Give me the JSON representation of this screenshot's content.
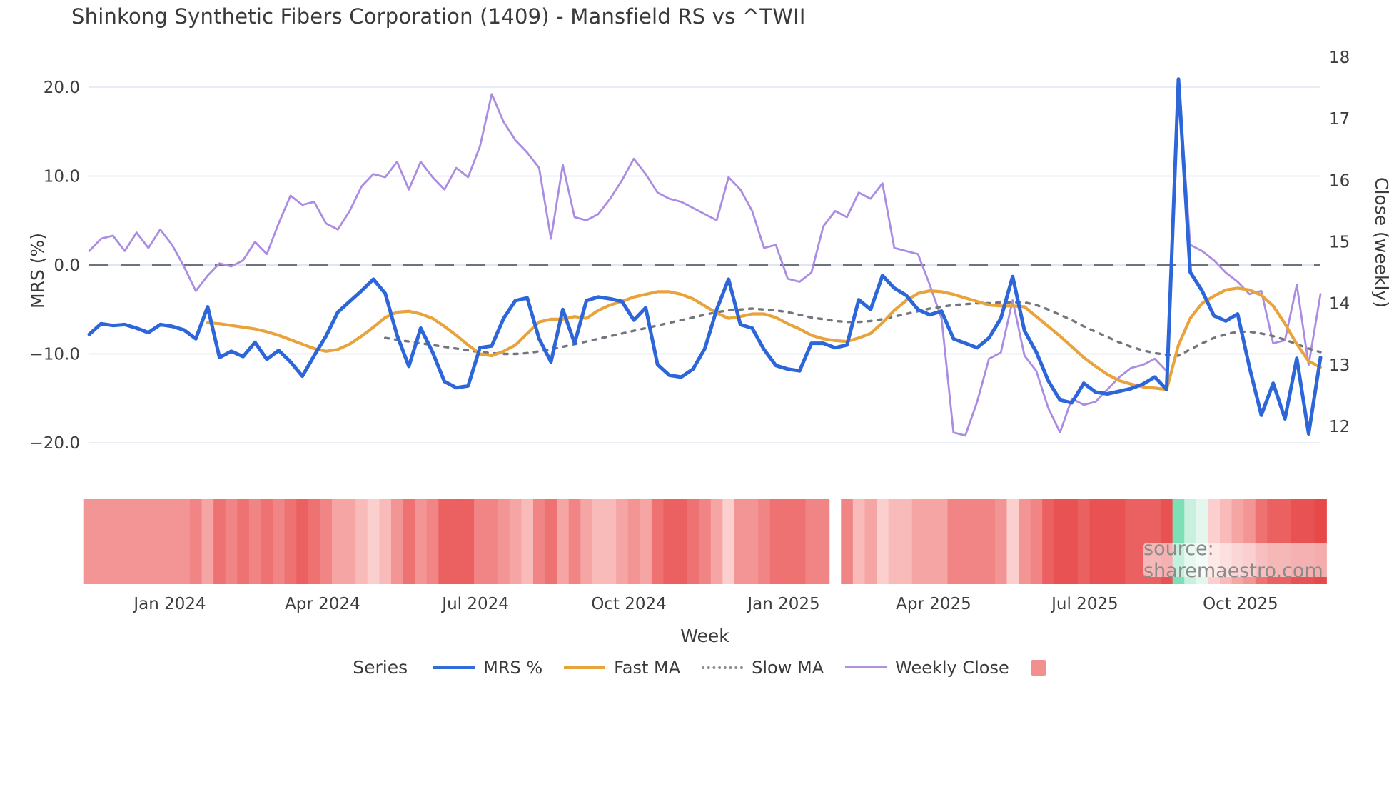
{
  "title": "Shinkong Synthetic Fibers Corporation (1409) - Mansfield RS vs ^TWII",
  "watermark": {
    "text": "source: sharemaestro.com"
  },
  "axes": {
    "left": {
      "label": "MRS (%)",
      "ticks": [
        {
          "value": 20,
          "label": "20.0"
        },
        {
          "value": 10,
          "label": "10.0"
        },
        {
          "value": 0,
          "label": "0.0"
        },
        {
          "value": -10,
          "label": "−10.0"
        },
        {
          "value": -20,
          "label": "−20.0"
        }
      ]
    },
    "right": {
      "label": "Close (weekly)",
      "ticks": [
        {
          "value": 18,
          "label": "18"
        },
        {
          "value": 17,
          "label": "17"
        },
        {
          "value": 16,
          "label": "16"
        },
        {
          "value": 15,
          "label": "15"
        },
        {
          "value": 14,
          "label": "14"
        },
        {
          "value": 13,
          "label": "13"
        },
        {
          "value": 12,
          "label": "12"
        }
      ]
    },
    "x": {
      "label": "Week",
      "ticks": [
        {
          "week": 6.81,
          "label": "Jan 2024"
        },
        {
          "week": 19.71,
          "label": "Apr 2024"
        },
        {
          "week": 32.62,
          "label": "Jul 2024"
        },
        {
          "week": 45.58,
          "label": "Oct 2024"
        },
        {
          "week": 58.66,
          "label": "Jan 2025"
        },
        {
          "week": 71.32,
          "label": "Apr 2025"
        },
        {
          "week": 84.1,
          "label": "Jul 2025"
        },
        {
          "week": 97.24,
          "label": "Oct 2025"
        }
      ]
    }
  },
  "legend": {
    "title": "Series",
    "items": [
      {
        "label": "MRS %",
        "color": "#2f6bd9",
        "style": "solid",
        "thickness": 5
      },
      {
        "label": "Fast MA",
        "color": "#e7a33c",
        "style": "solid",
        "thickness": 4
      },
      {
        "label": "Slow MA",
        "color": "#8b8e97",
        "style": "dotted",
        "thickness": 4
      },
      {
        "label": "Weekly Close",
        "color": "#b190e0",
        "style": "solid",
        "thickness": 3
      },
      {
        "label": "",
        "color": "#f29090",
        "style": "square",
        "thickness": 0
      }
    ]
  },
  "chart_data": {
    "type": "line",
    "title": "Shinkong Synthetic Fibers Corporation (1409) - Mansfield RS vs ^TWII",
    "xlabel": "Week",
    "ylabel_left": "MRS (%)",
    "ylabel_right": "Close (weekly)",
    "x_unit": "week_index",
    "weeks": 105,
    "date_range": "Nov 2023 - Nov 2025",
    "left_ylim": [
      -20,
      20
    ],
    "right_ylim": [
      12,
      18
    ],
    "grid": "horizontal-left-ticks",
    "zero_line": "dashed",
    "legend_position": "bottom",
    "series": [
      {
        "name": "Weekly Close",
        "axis": "right",
        "color": "#ab8ce3",
        "width": 2.8,
        "dash": null,
        "start": 0,
        "values": [
          14.85,
          15.05,
          15.1,
          14.85,
          15.15,
          14.9,
          15.2,
          14.95,
          14.6,
          14.2,
          14.45,
          14.65,
          14.6,
          14.7,
          15.0,
          14.8,
          15.3,
          15.75,
          15.6,
          15.65,
          15.3,
          15.2,
          15.5,
          15.9,
          16.1,
          16.05,
          16.3,
          15.85,
          16.3,
          16.05,
          15.85,
          16.2,
          16.05,
          16.55,
          17.4,
          16.95,
          16.65,
          16.45,
          16.2,
          15.05,
          16.25,
          15.4,
          15.35,
          15.45,
          15.7,
          16.0,
          16.35,
          16.1,
          15.8,
          15.7,
          15.65,
          15.55,
          15.45,
          15.35,
          16.05,
          15.85,
          15.5,
          14.9,
          14.95,
          14.4,
          14.35,
          14.5,
          15.25,
          15.5,
          15.4,
          15.8,
          15.7,
          15.95,
          14.9,
          14.85,
          14.8,
          14.3,
          13.75,
          11.9,
          11.85,
          12.4,
          13.1,
          13.2,
          14.05,
          13.15,
          12.9,
          12.3,
          11.9,
          12.45,
          12.35,
          12.4,
          12.6,
          12.8,
          12.95,
          13.0,
          13.1,
          12.9,
          17.65,
          14.95,
          14.85,
          14.7,
          14.5,
          14.35,
          14.15,
          14.2,
          13.35,
          13.4,
          14.3,
          13.0,
          14.15
        ]
      },
      {
        "name": "Slow MA",
        "axis": "left",
        "color": "#73767e",
        "width": 3.4,
        "dash": "5 9",
        "start": 25,
        "values": [
          -8.2,
          -8.4,
          -8.6,
          -8.8,
          -9.0,
          -9.2,
          -9.4,
          -9.6,
          -9.8,
          -9.9,
          -10.0,
          -10.0,
          -9.9,
          -9.7,
          -9.5,
          -9.2,
          -8.9,
          -8.6,
          -8.3,
          -8.0,
          -7.7,
          -7.4,
          -7.1,
          -6.8,
          -6.5,
          -6.2,
          -5.9,
          -5.6,
          -5.3,
          -5.1,
          -5.0,
          -4.9,
          -5.0,
          -5.1,
          -5.3,
          -5.6,
          -5.9,
          -6.1,
          -6.3,
          -6.4,
          -6.4,
          -6.3,
          -6.1,
          -5.8,
          -5.5,
          -5.2,
          -4.9,
          -4.7,
          -4.5,
          -4.4,
          -4.3,
          -4.3,
          -4.2,
          -4.2,
          -4.2,
          -4.5,
          -5.0,
          -5.6,
          -6.2,
          -6.9,
          -7.5,
          -8.1,
          -8.7,
          -9.2,
          -9.6,
          -9.9,
          -10.1,
          -10.2,
          -9.5,
          -8.8,
          -8.2,
          -7.8,
          -7.5,
          -7.5,
          -7.7,
          -8.0,
          -8.4,
          -8.9,
          -9.4,
          -9.8
        ]
      },
      {
        "name": "Fast MA",
        "axis": "left",
        "color": "#e8a33c",
        "width": 4.2,
        "dash": null,
        "start": 10,
        "values": [
          -6.5,
          -6.6,
          -6.8,
          -7.0,
          -7.2,
          -7.5,
          -7.9,
          -8.4,
          -8.9,
          -9.4,
          -9.7,
          -9.5,
          -8.9,
          -8.0,
          -7.0,
          -5.9,
          -5.3,
          -5.2,
          -5.5,
          -6.0,
          -6.9,
          -7.9,
          -9.0,
          -10.0,
          -10.2,
          -9.7,
          -9.0,
          -7.7,
          -6.4,
          -6.1,
          -6.1,
          -5.8,
          -6.0,
          -5.1,
          -4.5,
          -4.1,
          -3.6,
          -3.3,
          -3.0,
          -3.0,
          -3.3,
          -3.8,
          -4.6,
          -5.4,
          -6.0,
          -5.8,
          -5.5,
          -5.5,
          -5.9,
          -6.6,
          -7.2,
          -7.9,
          -8.3,
          -8.5,
          -8.6,
          -8.2,
          -7.7,
          -6.5,
          -5.1,
          -4.0,
          -3.2,
          -2.9,
          -3.0,
          -3.3,
          -3.7,
          -4.1,
          -4.5,
          -4.6,
          -4.6,
          -4.7,
          -5.8,
          -6.9,
          -8.0,
          -9.2,
          -10.4,
          -11.4,
          -12.3,
          -13.0,
          -13.4,
          -13.7,
          -13.85,
          -14.0,
          -9.0,
          -6.0,
          -4.3,
          -3.5,
          -2.8,
          -2.6,
          -2.8,
          -3.4,
          -4.6,
          -6.6,
          -8.9,
          -10.8,
          -11.5
        ]
      },
      {
        "name": "MRS %",
        "axis": "left",
        "color": "#2d66d9",
        "width": 5,
        "dash": null,
        "start": 0,
        "values": [
          -7.8,
          -6.6,
          -6.8,
          -6.7,
          -7.1,
          -7.6,
          -6.7,
          -6.9,
          -7.3,
          -8.3,
          -4.7,
          -10.4,
          -9.7,
          -10.3,
          -8.7,
          -10.6,
          -9.6,
          -10.9,
          -12.5,
          -10.2,
          -8.0,
          -5.3,
          -4.1,
          -2.9,
          -1.6,
          -3.2,
          -7.9,
          -11.4,
          -7.1,
          -9.8,
          -13.1,
          -13.8,
          -13.6,
          -9.3,
          -9.1,
          -6.0,
          -4.0,
          -3.7,
          -8.3,
          -10.9,
          -5.0,
          -8.8,
          -4.0,
          -3.6,
          -3.8,
          -4.1,
          -6.2,
          -4.8,
          -11.2,
          -12.4,
          -12.6,
          -11.7,
          -9.4,
          -5.0,
          -1.6,
          -6.7,
          -7.1,
          -9.5,
          -11.3,
          -11.7,
          -11.9,
          -8.8,
          -8.8,
          -9.3,
          -9.0,
          -3.9,
          -5.0,
          -1.2,
          -2.6,
          -3.4,
          -5.0,
          -5.6,
          -5.2,
          -8.3,
          -8.8,
          -9.3,
          -8.2,
          -6.0,
          -1.3,
          -7.4,
          -9.8,
          -13.0,
          -15.2,
          -15.5,
          -13.3,
          -14.3,
          -14.5,
          -14.2,
          -13.9,
          -13.4,
          -12.6,
          -14.0,
          20.9,
          -0.8,
          -2.9,
          -5.7,
          -6.3,
          -5.5,
          -11.5,
          -16.9,
          -13.3,
          -17.3,
          -10.5,
          -19.0,
          -10.4
        ]
      }
    ],
    "heatmap_strip": {
      "description": "weekly MRS heat cells below chart, white = missing week",
      "colors": [
        "#f39595",
        "#f39595",
        "#f39595",
        "#f39595",
        "#f39595",
        "#f39595",
        "#f39595",
        "#f39595",
        "#f39595",
        "#f18585",
        "#f6a5a5",
        "#ee7272",
        "#f18585",
        "#ee7272",
        "#f18585",
        "#ee7272",
        "#f18585",
        "#ee7272",
        "#eb6060",
        "#ee7272",
        "#f18585",
        "#f6a5a5",
        "#f6a5a5",
        "#f9baba",
        "#fccfcf",
        "#f9baba",
        "#f39595",
        "#ee7272",
        "#f39595",
        "#f18585",
        "#eb6060",
        "#eb6060",
        "#eb6060",
        "#f18585",
        "#f18585",
        "#f39595",
        "#f6a5a5",
        "#f9baba",
        "#f18585",
        "#ee7272",
        "#f6a5a5",
        "#f18585",
        "#f6a5a5",
        "#f9baba",
        "#f9baba",
        "#f6a5a5",
        "#f39595",
        "#f6a5a5",
        "#ee7272",
        "#eb6060",
        "#eb6060",
        "#ee7272",
        "#f18585",
        "#f6a5a5",
        "#fccfcf",
        "#f39595",
        "#f39595",
        "#f18585",
        "#ee7272",
        "#ee7272",
        "#ee7272",
        "#f18585",
        "#f18585",
        null,
        "#f18585",
        "#f9baba",
        "#f6a5a5",
        "#fccfcf",
        "#f9baba",
        "#f9baba",
        "#f6a5a5",
        "#f6a5a5",
        "#f6a5a5",
        "#f18585",
        "#f18585",
        "#f18585",
        "#f18585",
        "#f39595",
        "#fccfcf",
        "#f39595",
        "#f18585",
        "#eb6060",
        "#e95252",
        "#e95252",
        "#eb6060",
        "#e95252",
        "#e95252",
        "#e95252",
        "#eb6060",
        "#eb6060",
        "#eb6060",
        "#e95252",
        "#7ddfb6",
        "#c9f0de",
        "#e3f7ee",
        "#fccfcf",
        "#f9baba",
        "#f6a5a5",
        "#f39595",
        "#ee7272",
        "#eb6060",
        "#eb6060",
        "#e95252",
        "#e95252",
        "#e74848"
      ]
    }
  }
}
